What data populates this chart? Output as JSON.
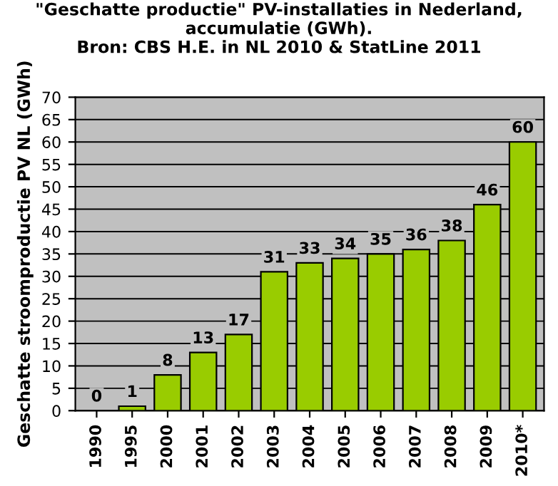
{
  "chart_data": {
    "type": "bar",
    "title": "\"Geschatte productie\" PV-installaties in Nederland,\naccumulatie (GWh).\nBron: CBS H.E. in NL 2010 & StatLine 2011",
    "ylabel": "Geschatte stroomproductie PV NL (GWh)",
    "categories": [
      "1990",
      "1995",
      "2000",
      "2001",
      "2002",
      "2003",
      "2004",
      "2005",
      "2006",
      "2007",
      "2008",
      "2009",
      "2010*"
    ],
    "values": [
      0,
      1,
      8,
      13,
      17,
      31,
      33,
      34,
      35,
      36,
      38,
      46,
      60
    ],
    "color": "#99cc00",
    "ylim": [
      0,
      70
    ],
    "yticks": [
      0,
      5,
      10,
      15,
      20,
      25,
      30,
      35,
      40,
      45,
      50,
      55,
      60,
      65,
      70
    ],
    "grid": "y",
    "data_labels": true
  }
}
